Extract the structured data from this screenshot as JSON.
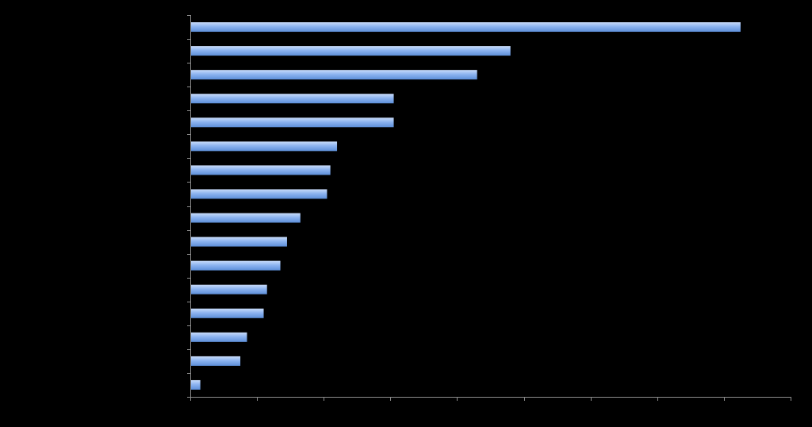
{
  "chart_data": {
    "type": "bar",
    "orientation": "horizontal",
    "title": "",
    "xlabel": "",
    "ylabel": "",
    "categories": [
      "",
      "",
      "",
      "",
      "",
      "",
      "",
      "",
      "",
      "",
      "",
      "",
      "",
      "",
      "",
      ""
    ],
    "values": [
      165,
      96,
      86,
      61,
      61,
      44,
      42,
      41,
      33,
      29,
      27,
      23,
      22,
      17,
      15,
      3
    ],
    "xlim": [
      0,
      180
    ],
    "x_tick_count": 9,
    "grid": false,
    "legend": "none",
    "colors": {
      "background": "#000000",
      "bar_light": "#c9dcfa",
      "bar_mid": "#8db4f0",
      "bar_dark": "#5d8fd9",
      "axis": "#8c8c8c"
    }
  }
}
